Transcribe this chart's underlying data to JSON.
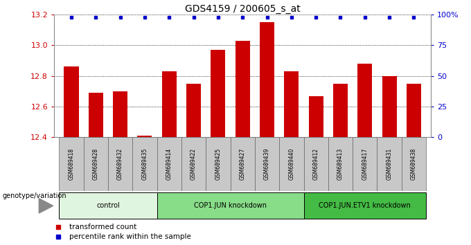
{
  "title": "GDS4159 / 200605_s_at",
  "samples": [
    "GSM689418",
    "GSM689428",
    "GSM689432",
    "GSM689435",
    "GSM689414",
    "GSM689422",
    "GSM689425",
    "GSM689427",
    "GSM689439",
    "GSM689440",
    "GSM689412",
    "GSM689413",
    "GSM689417",
    "GSM689431",
    "GSM689438"
  ],
  "values": [
    12.86,
    12.69,
    12.7,
    12.41,
    12.83,
    12.75,
    12.97,
    13.03,
    13.15,
    12.83,
    12.67,
    12.75,
    12.88,
    12.8,
    12.75
  ],
  "ylim": [
    12.4,
    13.2
  ],
  "yticks": [
    12.4,
    12.6,
    12.8,
    13.0,
    13.2
  ],
  "right_ytick_pcts": [
    0,
    25,
    50,
    75,
    100
  ],
  "right_ytick_labels": [
    "0",
    "25",
    "50",
    "75",
    "100%"
  ],
  "bar_color": "#cc0000",
  "dot_color": "#0000cc",
  "tick_area_color": "#c8c8c8",
  "groups": [
    {
      "label": "control",
      "start": 0,
      "end": 3,
      "color": "#e8f8e8"
    },
    {
      "label": "COP1.JUN knockdown",
      "start": 4,
      "end": 9,
      "color": "#88dd88"
    },
    {
      "label": "COP1.JUN.ETV1 knockdown",
      "start": 10,
      "end": 14,
      "color": "#44bb44"
    }
  ],
  "legend_items": [
    {
      "label": "transformed count",
      "color": "#cc0000"
    },
    {
      "label": "percentile rank within the sample",
      "color": "#0000cc"
    }
  ],
  "genotype_label": "genotype/variation",
  "left_axis_color": "#cc0000",
  "right_axis_color": "#0000cc"
}
